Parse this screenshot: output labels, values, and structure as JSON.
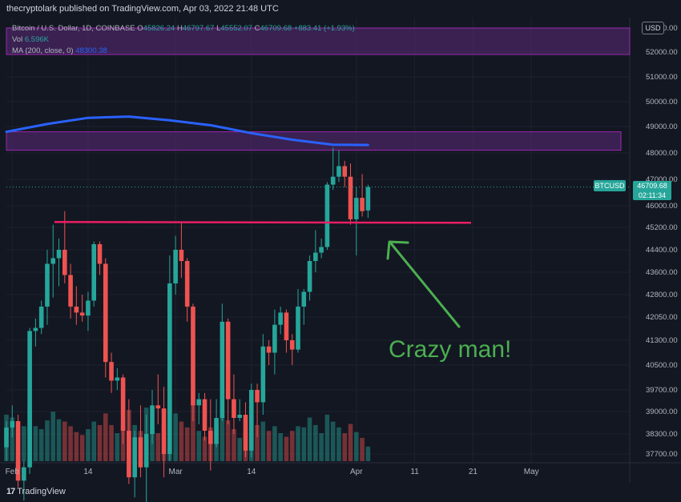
{
  "header": {
    "publisher_line": "thecryptolark published on TradingView.com, Apr 03, 2022 21:48 UTC"
  },
  "legend": {
    "symbol_line": "Bitcoin / U.S. Dollar, 1D, COINBASE",
    "o_label": "O",
    "o_value": "45826.24",
    "h_label": "H",
    "h_value": "46797.67",
    "l_label": "L",
    "l_value": "45552.07",
    "c_label": "C",
    "c_value": "46709.68",
    "change": "+883.41 (+1.93%)",
    "vol_label": "Vol",
    "vol_value": "6.596K",
    "ma_label": "MA (200, close, 0)",
    "ma_value": "48300.38"
  },
  "currency_button": "USD",
  "price_label": {
    "symbol": "BTCUSD",
    "price": "46709.68",
    "countdown": "02:11:34"
  },
  "annotation": "Crazy man!",
  "footer": {
    "logo_mark": "17",
    "logo_text": "TradingView"
  },
  "colors": {
    "background": "#131722",
    "up": "#26a69a",
    "down": "#ef5350",
    "ma": "#2962ff",
    "zone_fill": "#5b2a7a",
    "zone_border": "#9c27b0",
    "support_line": "#e91e63",
    "arrow": "#4caf50"
  },
  "chart_data": {
    "type": "candlestick",
    "title": "Bitcoin / U.S. Dollar, 1D, COINBASE",
    "y_axis_ticks": [
      "37700.00",
      "38300.00",
      "39000.00",
      "39700.00",
      "40500.00",
      "41300.00",
      "42050.00",
      "42800.00",
      "43600.00",
      "44400.00",
      "45200.00",
      "46000.00",
      "47000.00",
      "48000.00",
      "49000.00",
      "50000.00",
      "51000.00",
      "52000.00",
      "53000.00"
    ],
    "x_axis_ticks": [
      "Feb",
      "14",
      "Mar",
      "14",
      "Apr",
      "11",
      "21",
      "May"
    ],
    "candles": [
      {
        "d": "2022-01-31",
        "o": 37900,
        "h": 38700,
        "l": 37500,
        "c": 38500
      },
      {
        "d": "2022-02-01",
        "o": 38500,
        "h": 39200,
        "l": 38200,
        "c": 38700
      },
      {
        "d": "2022-02-02",
        "o": 38700,
        "h": 38900,
        "l": 36700,
        "c": 36900
      },
      {
        "d": "2022-02-03",
        "o": 36900,
        "h": 37500,
        "l": 36300,
        "c": 37300
      },
      {
        "d": "2022-02-04",
        "o": 37300,
        "h": 41700,
        "l": 37100,
        "c": 41600
      },
      {
        "d": "2022-02-05",
        "o": 41600,
        "h": 42000,
        "l": 41100,
        "c": 41700
      },
      {
        "d": "2022-02-06",
        "o": 41700,
        "h": 42600,
        "l": 41500,
        "c": 42400
      },
      {
        "d": "2022-02-07",
        "o": 42400,
        "h": 44400,
        "l": 41800,
        "c": 43900
      },
      {
        "d": "2022-02-08",
        "o": 43900,
        "h": 45300,
        "l": 42700,
        "c": 44100
      },
      {
        "d": "2022-02-09",
        "o": 44100,
        "h": 44800,
        "l": 43100,
        "c": 44400
      },
      {
        "d": "2022-02-10",
        "o": 44400,
        "h": 45800,
        "l": 43200,
        "c": 43500
      },
      {
        "d": "2022-02-11",
        "o": 43500,
        "h": 43900,
        "l": 42000,
        "c": 42400
      },
      {
        "d": "2022-02-12",
        "o": 42400,
        "h": 43100,
        "l": 41800,
        "c": 42200
      },
      {
        "d": "2022-02-13",
        "o": 42200,
        "h": 42800,
        "l": 41900,
        "c": 42100
      },
      {
        "d": "2022-02-14",
        "o": 42100,
        "h": 42900,
        "l": 41600,
        "c": 42600
      },
      {
        "d": "2022-02-15",
        "o": 42600,
        "h": 44700,
        "l": 42400,
        "c": 44600
      },
      {
        "d": "2022-02-16",
        "o": 44600,
        "h": 44700,
        "l": 43500,
        "c": 43900
      },
      {
        "d": "2022-02-17",
        "o": 43900,
        "h": 44100,
        "l": 40100,
        "c": 40600
      },
      {
        "d": "2022-02-18",
        "o": 40600,
        "h": 40900,
        "l": 39600,
        "c": 40000
      },
      {
        "d": "2022-02-19",
        "o": 40000,
        "h": 40400,
        "l": 39700,
        "c": 40100
      },
      {
        "d": "2022-02-20",
        "o": 40100,
        "h": 40200,
        "l": 38000,
        "c": 38400
      },
      {
        "d": "2022-02-21",
        "o": 38400,
        "h": 39400,
        "l": 36800,
        "c": 37000
      },
      {
        "d": "2022-02-22",
        "o": 37000,
        "h": 38400,
        "l": 36400,
        "c": 38200
      },
      {
        "d": "2022-02-23",
        "o": 38200,
        "h": 39200,
        "l": 37000,
        "c": 37300
      },
      {
        "d": "2022-02-24",
        "o": 37300,
        "h": 38900,
        "l": 34400,
        "c": 38300
      },
      {
        "d": "2022-02-25",
        "o": 38300,
        "h": 39700,
        "l": 38000,
        "c": 39200
      },
      {
        "d": "2022-02-26",
        "o": 39200,
        "h": 40200,
        "l": 38600,
        "c": 39100
      },
      {
        "d": "2022-02-27",
        "o": 39100,
        "h": 39800,
        "l": 37000,
        "c": 37700
      },
      {
        "d": "2022-02-28",
        "o": 37700,
        "h": 44200,
        "l": 37500,
        "c": 43200
      },
      {
        "d": "2022-03-01",
        "o": 43200,
        "h": 44900,
        "l": 42800,
        "c": 44400
      },
      {
        "d": "2022-03-02",
        "o": 44400,
        "h": 45400,
        "l": 43400,
        "c": 44000
      },
      {
        "d": "2022-03-03",
        "o": 44000,
        "h": 44100,
        "l": 41900,
        "c": 42400
      },
      {
        "d": "2022-03-04",
        "o": 42400,
        "h": 42500,
        "l": 38700,
        "c": 39200
      },
      {
        "d": "2022-03-05",
        "o": 39200,
        "h": 39600,
        "l": 38600,
        "c": 39400
      },
      {
        "d": "2022-03-06",
        "o": 39400,
        "h": 39600,
        "l": 38100,
        "c": 38400
      },
      {
        "d": "2022-03-07",
        "o": 38400,
        "h": 39400,
        "l": 37200,
        "c": 38000
      },
      {
        "d": "2022-03-08",
        "o": 38000,
        "h": 39400,
        "l": 37900,
        "c": 38800
      },
      {
        "d": "2022-03-09",
        "o": 38800,
        "h": 42500,
        "l": 38700,
        "c": 41900
      },
      {
        "d": "2022-03-10",
        "o": 41900,
        "h": 42000,
        "l": 38600,
        "c": 39400
      },
      {
        "d": "2022-03-11",
        "o": 39400,
        "h": 40200,
        "l": 38300,
        "c": 38800
      },
      {
        "d": "2022-03-12",
        "o": 38800,
        "h": 39400,
        "l": 38700,
        "c": 38900
      },
      {
        "d": "2022-03-13",
        "o": 38900,
        "h": 39300,
        "l": 37600,
        "c": 37800
      },
      {
        "d": "2022-03-14",
        "o": 37800,
        "h": 39900,
        "l": 37600,
        "c": 39700
      },
      {
        "d": "2022-03-15",
        "o": 39700,
        "h": 39900,
        "l": 38200,
        "c": 39300
      },
      {
        "d": "2022-03-16",
        "o": 39300,
        "h": 41500,
        "l": 38900,
        "c": 41100
      },
      {
        "d": "2022-03-17",
        "o": 41100,
        "h": 41300,
        "l": 40500,
        "c": 40900
      },
      {
        "d": "2022-03-18",
        "o": 40900,
        "h": 42300,
        "l": 40200,
        "c": 41800
      },
      {
        "d": "2022-03-19",
        "o": 41800,
        "h": 42400,
        "l": 41500,
        "c": 42200
      },
      {
        "d": "2022-03-20",
        "o": 42200,
        "h": 42300,
        "l": 40900,
        "c": 41300
      },
      {
        "d": "2022-03-21",
        "o": 41300,
        "h": 41500,
        "l": 40500,
        "c": 41000
      },
      {
        "d": "2022-03-22",
        "o": 41000,
        "h": 43000,
        "l": 40900,
        "c": 42400
      },
      {
        "d": "2022-03-23",
        "o": 42400,
        "h": 43000,
        "l": 41800,
        "c": 42900
      },
      {
        "d": "2022-03-24",
        "o": 42900,
        "h": 44200,
        "l": 42600,
        "c": 44000
      },
      {
        "d": "2022-03-25",
        "o": 44000,
        "h": 45100,
        "l": 43600,
        "c": 44300
      },
      {
        "d": "2022-03-26",
        "o": 44300,
        "h": 44800,
        "l": 44100,
        "c": 44500
      },
      {
        "d": "2022-03-27",
        "o": 44500,
        "h": 46900,
        "l": 44400,
        "c": 46800
      },
      {
        "d": "2022-03-28",
        "o": 46800,
        "h": 48200,
        "l": 46600,
        "c": 47100
      },
      {
        "d": "2022-03-29",
        "o": 47100,
        "h": 48100,
        "l": 46900,
        "c": 47500
      },
      {
        "d": "2022-03-30",
        "o": 47500,
        "h": 47700,
        "l": 46700,
        "c": 47100
      },
      {
        "d": "2022-03-31",
        "o": 47100,
        "h": 47600,
        "l": 45300,
        "c": 45500
      },
      {
        "d": "2022-04-01",
        "o": 45500,
        "h": 46700,
        "l": 44200,
        "c": 46300
      },
      {
        "d": "2022-04-02",
        "o": 46300,
        "h": 47200,
        "l": 45600,
        "c": 45800
      },
      {
        "d": "2022-04-03",
        "o": 45826.24,
        "h": 46797.67,
        "l": 45552.07,
        "c": 46709.68
      }
    ],
    "ma200": [
      {
        "d": "2022-01-31",
        "v": 48800
      },
      {
        "d": "2022-02-07",
        "v": 49100
      },
      {
        "d": "2022-02-14",
        "v": 49350
      },
      {
        "d": "2022-02-21",
        "v": 49400
      },
      {
        "d": "2022-02-28",
        "v": 49250
      },
      {
        "d": "2022-03-07",
        "v": 49050
      },
      {
        "d": "2022-03-14",
        "v": 48750
      },
      {
        "d": "2022-03-21",
        "v": 48500
      },
      {
        "d": "2022-03-28",
        "v": 48310
      },
      {
        "d": "2022-04-03",
        "v": 48300
      }
    ],
    "resistance_zones": [
      {
        "from": 51900,
        "to": 53000
      },
      {
        "from": 48100,
        "to": 48800
      }
    ],
    "support_level": 45400
  }
}
